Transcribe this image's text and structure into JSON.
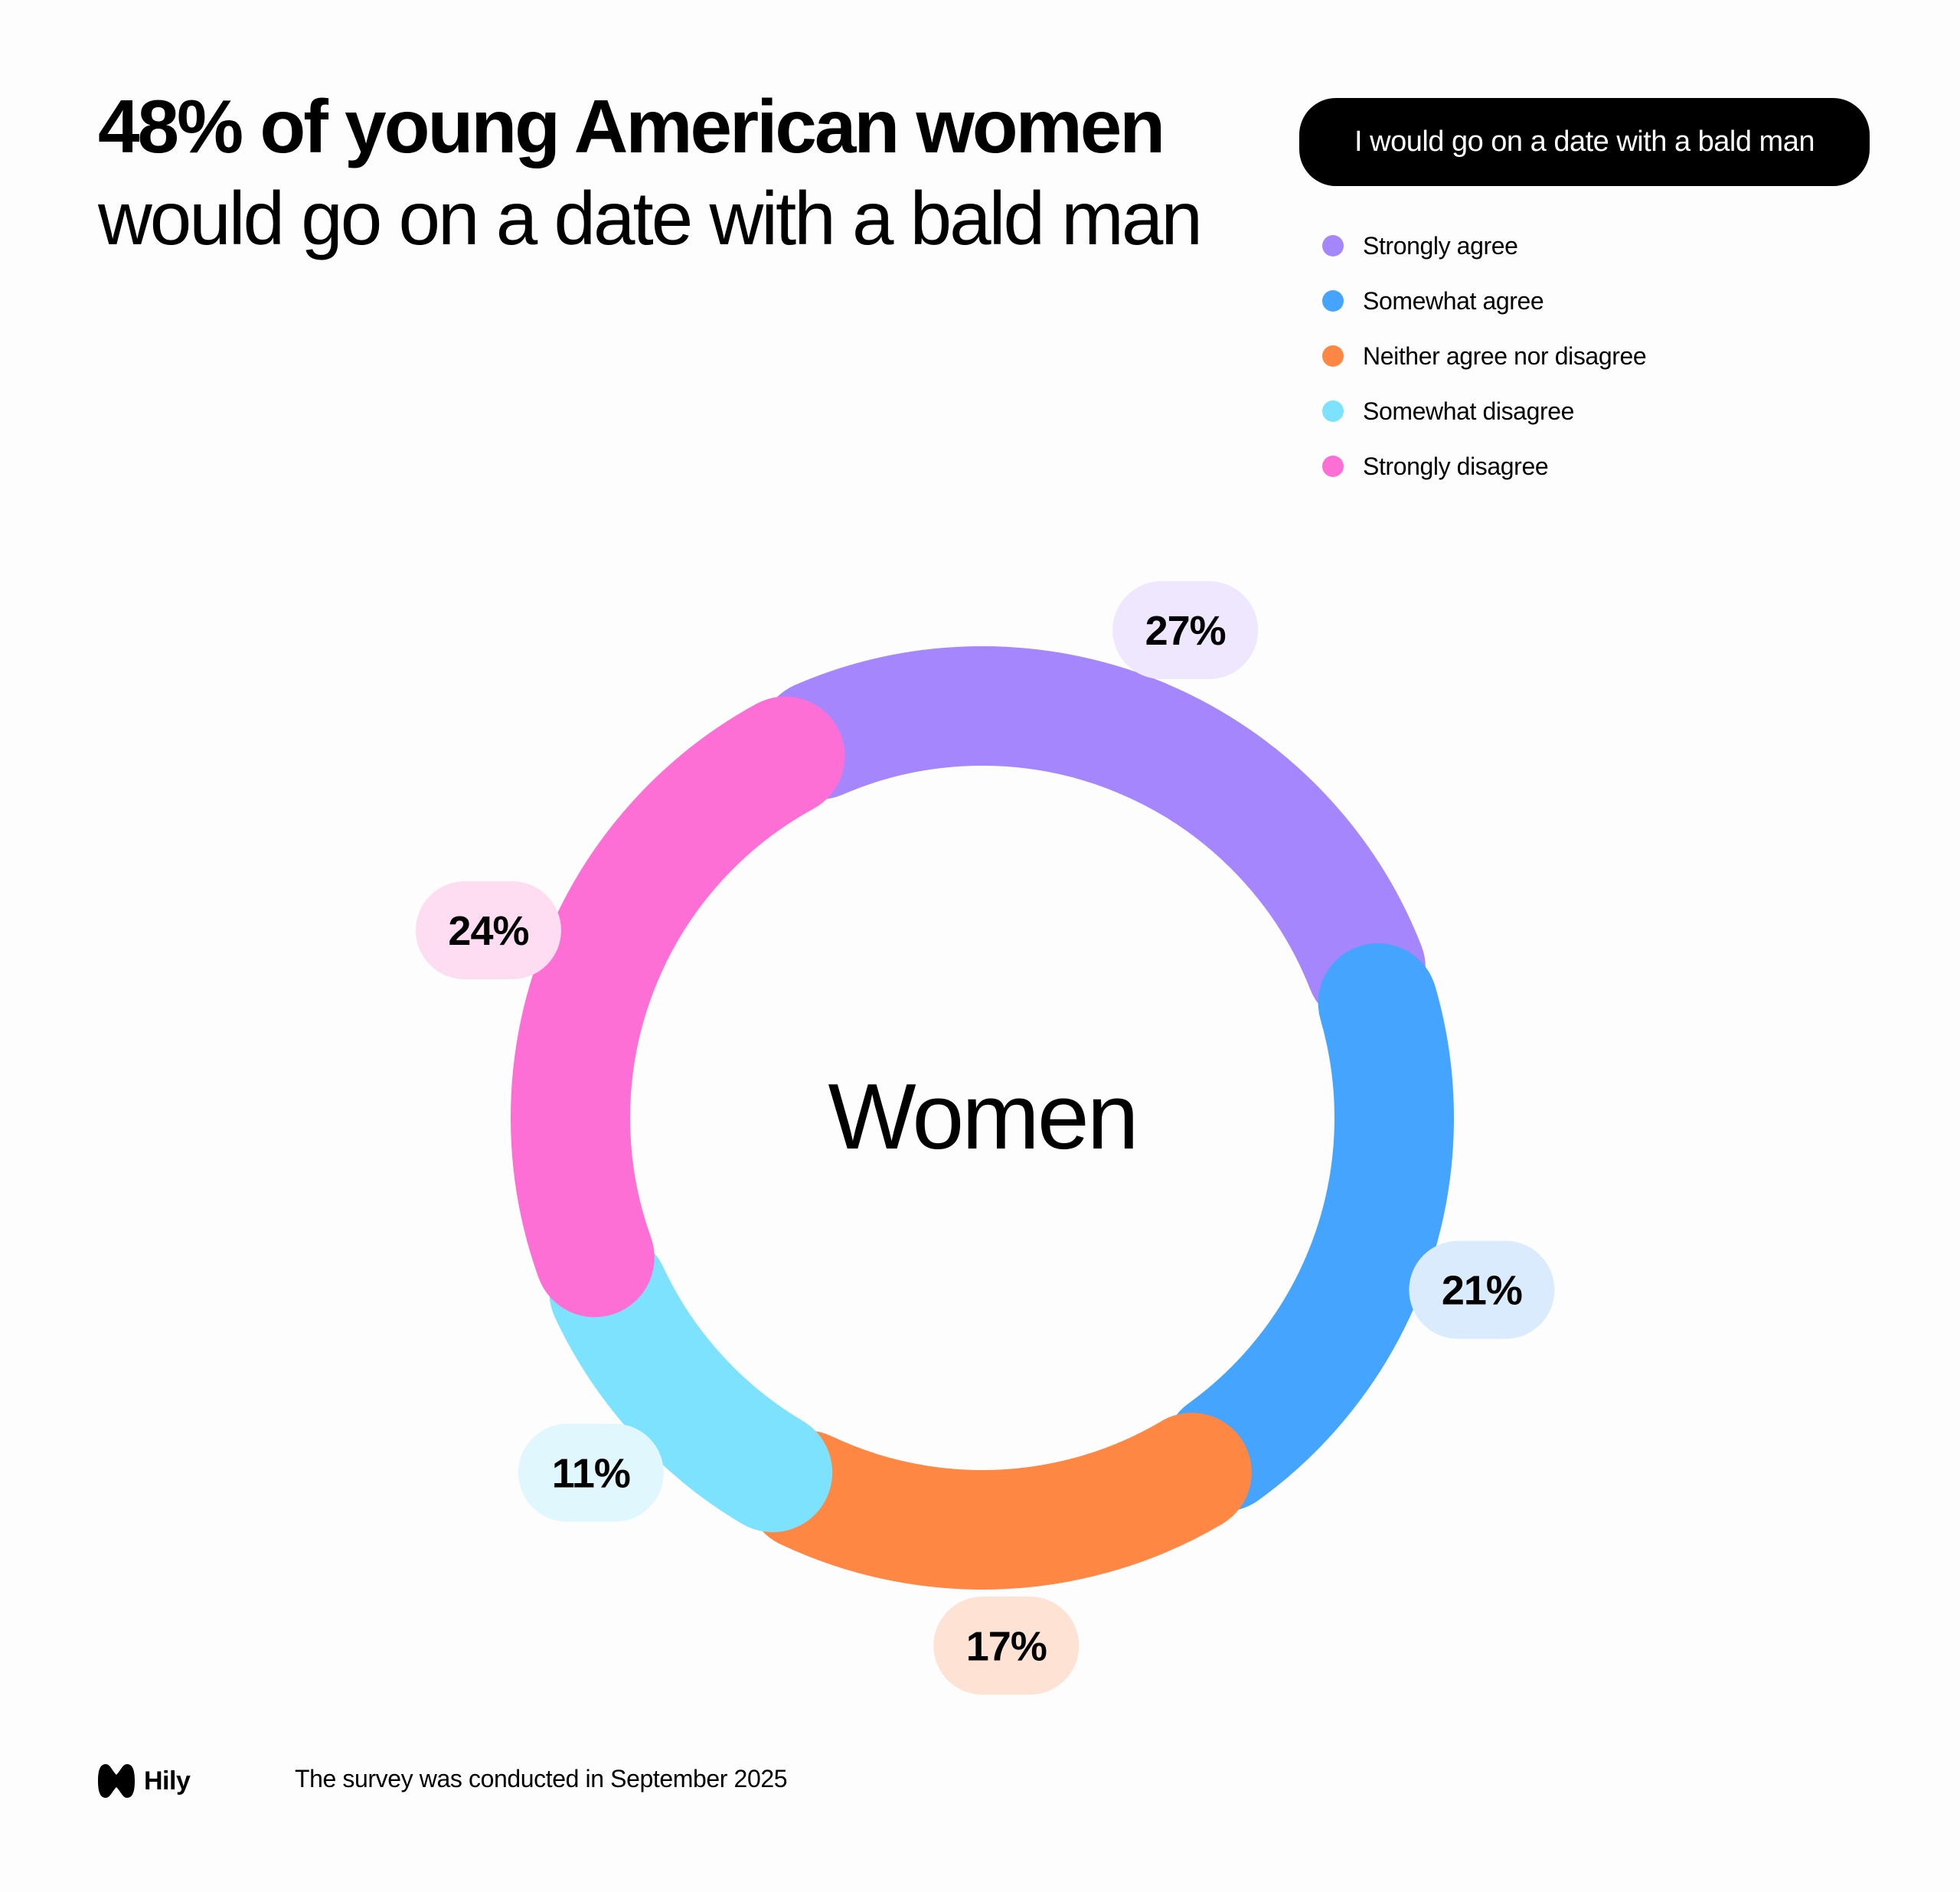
{
  "title": {
    "bold": "48% of young American women",
    "regular": "would go on a date with a bald man"
  },
  "legend": {
    "header": "I would go on a date with a bald man",
    "items": [
      {
        "label": "Strongly agree",
        "color": "#A586FC"
      },
      {
        "label": "Somewhat agree",
        "color": "#45A4FE"
      },
      {
        "label": "Neither agree nor disagree",
        "color": "#FE8843"
      },
      {
        "label": "Somewhat disagree",
        "color": "#7CE2FE"
      },
      {
        "label": "Strongly disagree",
        "color": "#FE6FD6"
      }
    ]
  },
  "chart_data": {
    "type": "pie",
    "center_label": "Women",
    "slices": [
      {
        "category": "Strongly agree",
        "value": 27,
        "label": "27%",
        "color": "#A586FC",
        "pill_color": "#EEE7FE"
      },
      {
        "category": "Somewhat agree",
        "value": 21,
        "label": "21%",
        "color": "#45A4FE",
        "pill_color": "#DAEBFE"
      },
      {
        "category": "Neither agree nor disagree",
        "value": 17,
        "label": "17%",
        "color": "#FE8843",
        "pill_color": "#FEE2D3"
      },
      {
        "category": "Somewhat disagree",
        "value": 11,
        "label": "11%",
        "color": "#7CE2FE",
        "pill_color": "#E1F7FE"
      },
      {
        "category": "Strongly disagree",
        "value": 24,
        "label": "24%",
        "color": "#FE6FD6",
        "pill_color": "#FEDDF3"
      }
    ]
  },
  "footer": {
    "brand": "Hily",
    "note": "The survey was conducted in September 2025"
  }
}
